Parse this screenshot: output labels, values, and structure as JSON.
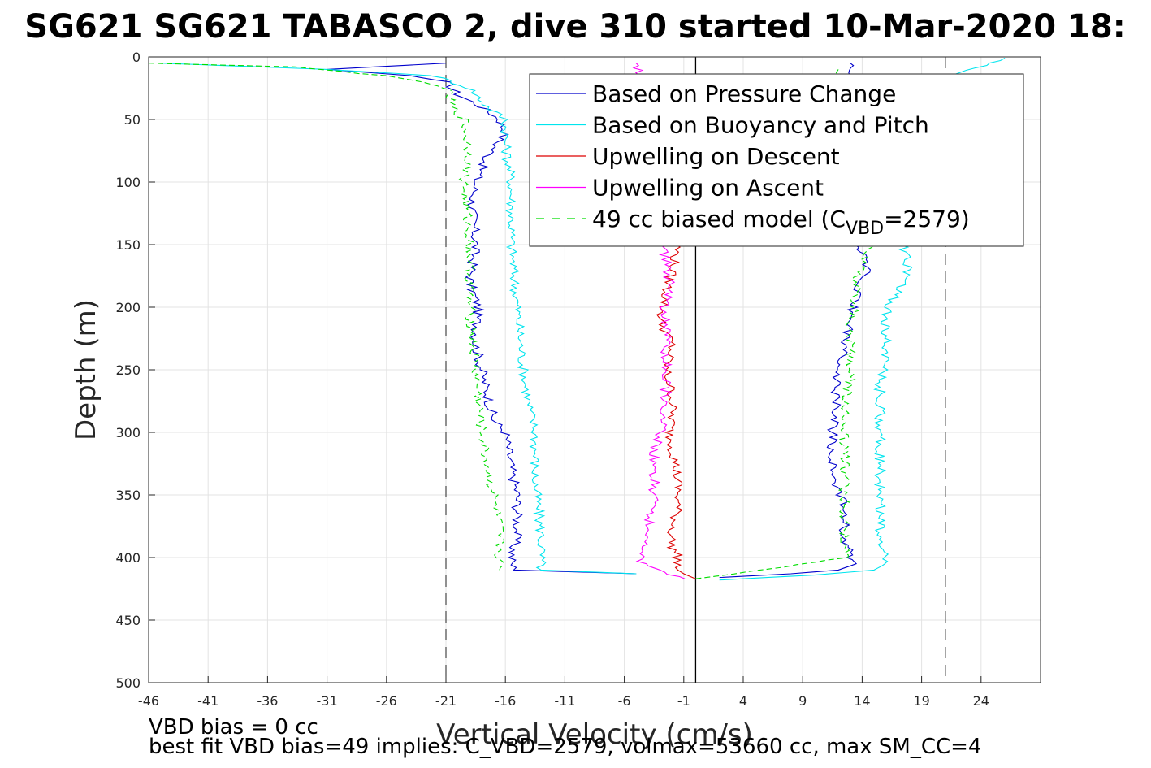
{
  "chart_data": {
    "type": "line",
    "title": "SG621 SG621 TABASCO 2, dive 310 started 10-Mar-2020 18:",
    "xlabel": "Vertical Velocity (cm/s)",
    "ylabel": "Depth (m)",
    "xlim": [
      -46,
      29
    ],
    "ylim": [
      500,
      0
    ],
    "y_reversed": true,
    "grid": true,
    "xticks": [
      -46,
      -41,
      -36,
      -31,
      -26,
      -21,
      -16,
      -11,
      -6,
      -1,
      4,
      9,
      14,
      19,
      24
    ],
    "yticks": [
      0,
      50,
      100,
      150,
      200,
      250,
      300,
      350,
      400,
      450,
      500
    ],
    "legend_position": "top-right",
    "reference_lines": [
      {
        "x": -21,
        "style": "dashed",
        "color": "#555555"
      },
      {
        "x": 21,
        "style": "dashed",
        "color": "#555555"
      },
      {
        "x": 0,
        "style": "solid",
        "color": "#000000"
      }
    ],
    "series": [
      {
        "name": "Based on Pressure Change",
        "color": "#0000cc",
        "style": "solid",
        "segments": [
          {
            "x": [
              -21,
              -31,
              -24,
              -21,
              -20,
              -18,
              -16.5,
              -16,
              -17.5,
              -18.5,
              -18.8,
              -18.5,
              -19,
              -18.3,
              -18.5,
              -18,
              -17.5,
              -17,
              -16,
              -15.5,
              -15,
              -15,
              -15.5,
              -15.3,
              -5
            ],
            "y": [
              5,
              10,
              15,
              20,
              30,
              40,
              50,
              60,
              80,
              100,
              120,
              150,
              180,
              200,
              230,
              250,
              270,
              290,
              300,
              330,
              350,
              380,
              400,
              410,
              413
            ]
          },
          {
            "x": [
              2,
              8,
              12,
              13.5,
              13,
              12.5,
              12.5,
              11.5,
              11.5,
              11.8,
              12,
              12.5,
              13,
              13.5,
              14.5,
              13.5,
              13.5,
              13.5,
              13
            ],
            "y": [
              416,
              413,
              410,
              405,
              400,
              380,
              360,
              330,
              300,
              270,
              250,
              230,
              210,
              190,
              170,
              150,
              80,
              40,
              5
            ]
          }
        ]
      },
      {
        "name": "Based on Buoyancy and Pitch",
        "color": "#00e5ee",
        "style": "solid",
        "segments": [
          {
            "x": [
              -45,
              -31,
              -22,
              -19,
              -17.5,
              -16,
              -16,
              -15.5,
              -15.5,
              -15,
              -14.5,
              -14,
              -13.5,
              -13.5,
              -13,
              -13,
              -5
            ],
            "y": [
              5,
              10,
              15,
              25,
              40,
              50,
              70,
              100,
              150,
              200,
              250,
              280,
              300,
              340,
              380,
              410,
              413
            ]
          },
          {
            "x": [
              2,
              10,
              15,
              16,
              15.5,
              15.5,
              15.5,
              15.5,
              16,
              16,
              17,
              18,
              17.5,
              17.5,
              17,
              26
            ],
            "y": [
              418,
              414,
              410,
              405,
              380,
              340,
              300,
              260,
              240,
              200,
              190,
              170,
              150,
              80,
              30,
              1
            ]
          }
        ]
      },
      {
        "name": "Upwelling on Descent",
        "color": "#dd0000",
        "style": "solid",
        "segments": [
          {
            "x": [
              -1.5,
              -2,
              -2.5,
              -3,
              -2,
              -2.5,
              -2,
              -2,
              -2.2,
              -1.8,
              -1.5,
              -1.5,
              -2,
              -2,
              -1.5,
              -1.5,
              -1,
              0
            ],
            "y": [
              150,
              170,
              190,
              210,
              230,
              250,
              270,
              290,
              300,
              320,
              340,
              360,
              380,
              390,
              400,
              410,
              413,
              417
            ]
          }
        ]
      },
      {
        "name": "Upwelling on Ascent",
        "color": "#ff00ff",
        "style": "solid",
        "segments": [
          {
            "x": [
              -1,
              -3,
              -4.5,
              -4.5,
              -4,
              -3.5,
              -3.5,
              -3,
              -2.5,
              -2.5,
              -2.5,
              -2.5,
              -2.2,
              -2.5,
              -3,
              -4,
              -5
            ],
            "y": [
              417,
              410,
              405,
              395,
              380,
              350,
              320,
              300,
              280,
              250,
              230,
              200,
              180,
              160,
              150,
              45,
              5
            ]
          }
        ]
      },
      {
        "name": "49 cc biased model (C_VBD=2579)",
        "color": "#00dd00",
        "style": "dashed",
        "segments": [
          {
            "x": [
              -46,
              -34,
              -26,
              -23,
              -21,
              -20.5,
              -19.5,
              -19,
              -19.5,
              -19,
              -19,
              -18.5,
              -18,
              -17.5,
              -17,
              -16.5,
              -16.5,
              -16.5
            ],
            "y": [
              5,
              8,
              15,
              20,
              25,
              40,
              50,
              80,
              100,
              150,
              200,
              250,
              300,
              330,
              350,
              380,
              400,
              410
            ]
          },
          {
            "x": [
              0,
              2,
              12.5,
              12.5,
              12.5,
              13,
              13,
              13.5,
              14.5,
              15,
              14.5,
              12
            ],
            "y": [
              417,
              415,
              400,
              350,
              300,
              250,
              220,
              180,
              150,
              100,
              60,
              10
            ]
          }
        ]
      }
    ]
  },
  "footer": {
    "line1": "VBD bias = 0 cc",
    "line2": "best fit VBD bias=49 implies: C_VBD=2579, volmax=53660 cc, max SM_CC=4"
  }
}
